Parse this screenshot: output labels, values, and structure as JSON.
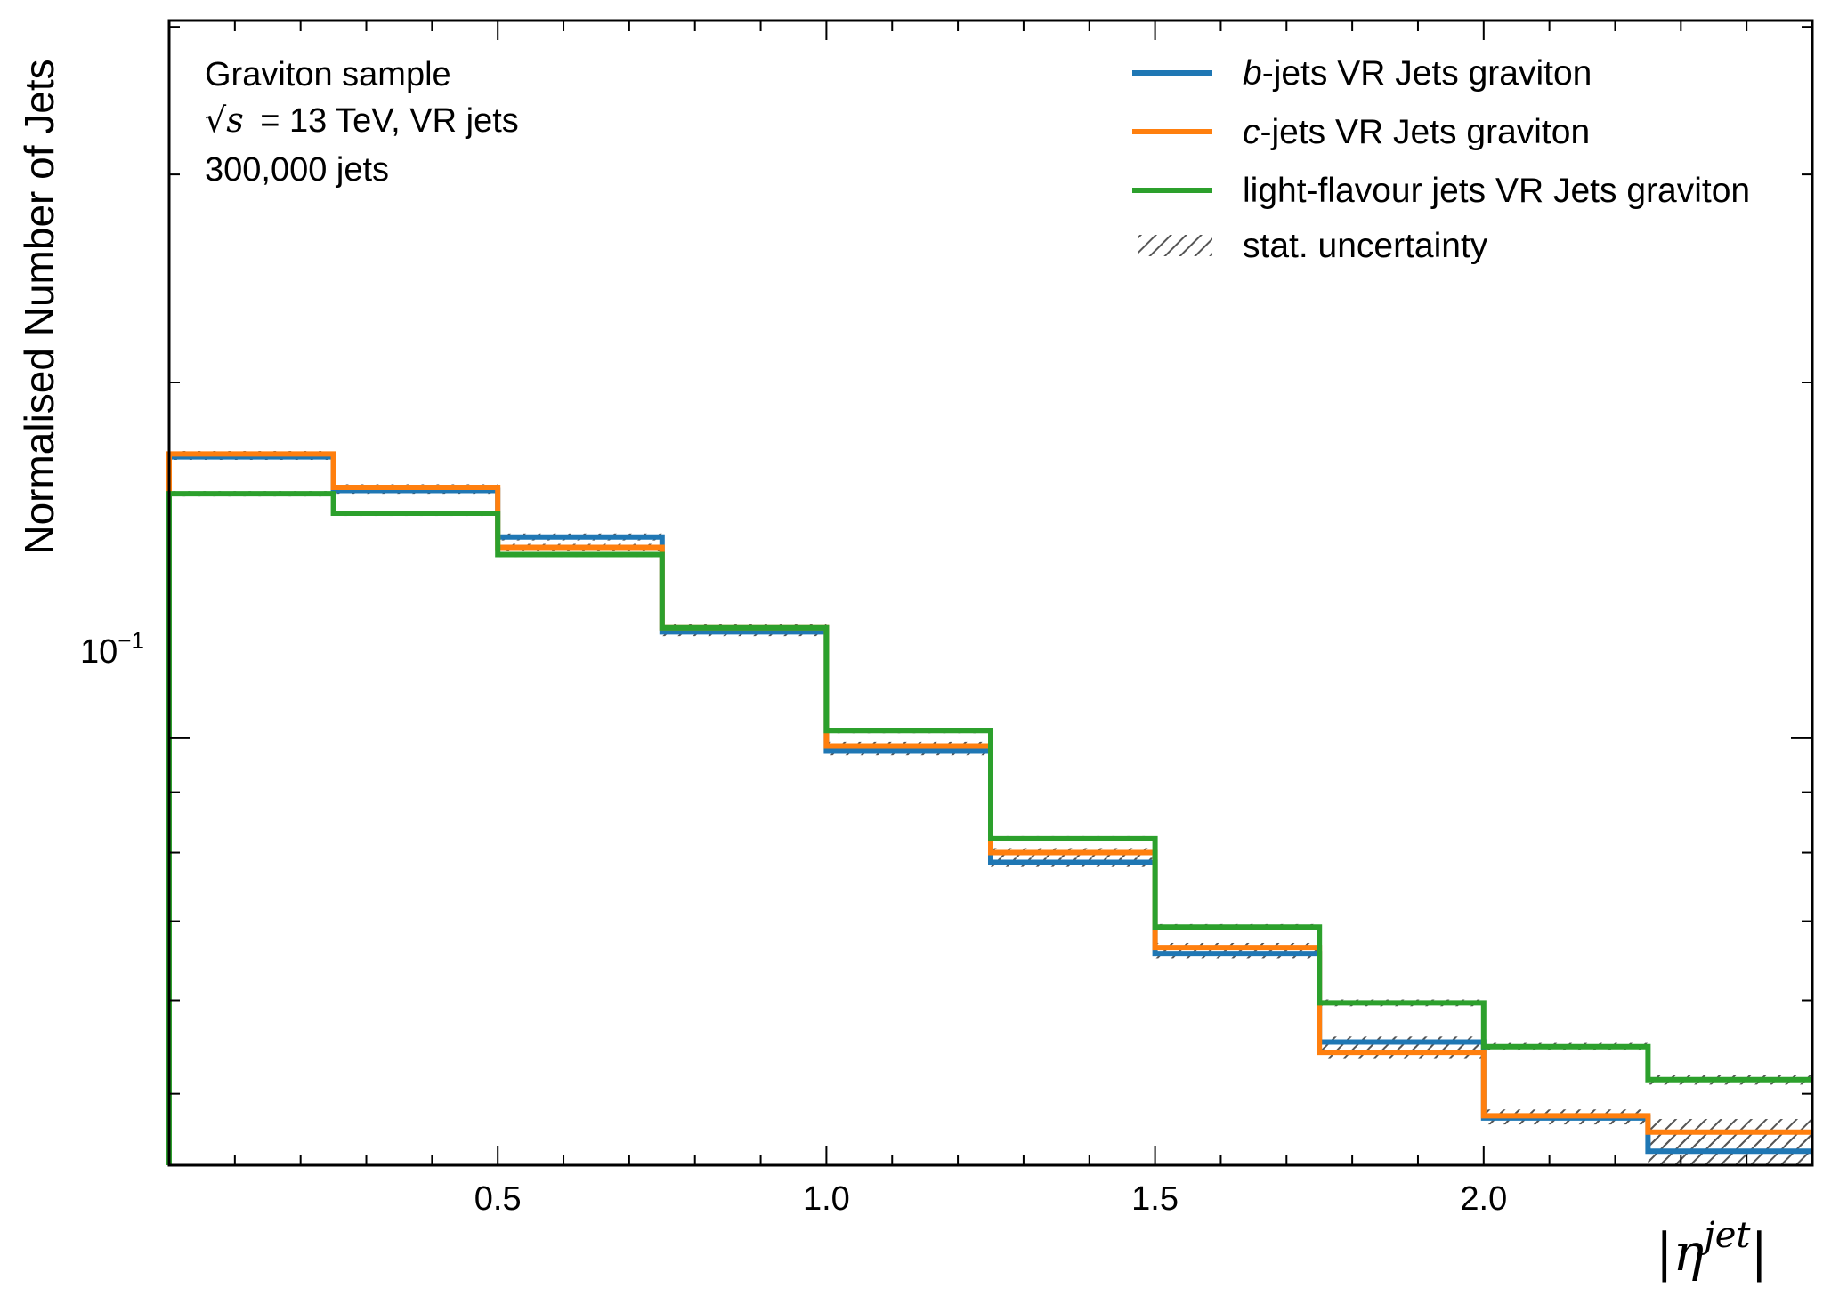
{
  "chart_data": {
    "type": "line",
    "drawstyle": "step",
    "xlabel": "|η^jet|",
    "ylabel": "Normalised Number of Jets",
    "yscale": "log",
    "xlim": [
      0,
      2.5
    ],
    "ylim": [
      0.0435,
      0.405
    ],
    "x_ticks": [
      "0.5",
      "1.0",
      "1.5",
      "2.0"
    ],
    "y_tick_major": "10^{-1}",
    "grid": false,
    "legend_placement": "top-right",
    "annotations": {
      "line1": "Graviton sample",
      "line2_sqrt": "√s",
      "line2_rest": "= 13 TeV, VR jets",
      "line3": "300,000 jets"
    },
    "bin_edges": [
      0,
      0.25,
      0.5,
      0.75,
      1.0,
      1.25,
      1.5,
      1.75,
      2.0,
      2.25,
      2.5
    ],
    "series": [
      {
        "name_italic": "b",
        "name_rest": "-jets VR Jets graviton",
        "color": "#1f77b4",
        "values": [
          0.173,
          0.162,
          0.148,
          0.123,
          0.0975,
          0.0785,
          0.0657,
          0.0553,
          0.0477,
          0.0447
        ],
        "uncertainty": [
          0.001,
          0.001,
          0.001,
          0.001,
          0.0008,
          0.0007,
          0.0006,
          0.0006,
          0.0006,
          0.0012
        ]
      },
      {
        "name_italic": "c",
        "name_rest": "-jets VR Jets graviton",
        "color": "#ff7f0e",
        "values": [
          0.174,
          0.163,
          0.145,
          0.124,
          0.0985,
          0.08,
          0.0665,
          0.0542,
          0.0479,
          0.0464
        ],
        "uncertainty": [
          0.001,
          0.001,
          0.001,
          0.001,
          0.0008,
          0.0007,
          0.0006,
          0.0006,
          0.0006,
          0.0012
        ]
      },
      {
        "name_italic": "",
        "name_rest": "light-flavour jets VR Jets graviton",
        "color": "#2ca02c",
        "values": [
          0.161,
          0.155,
          0.143,
          0.124,
          0.1015,
          0.0822,
          0.0692,
          0.0597,
          0.0548,
          0.0514
        ],
        "uncertainty": [
          0.0005,
          0.0005,
          0.0005,
          0.0005,
          0.0004,
          0.0004,
          0.0004,
          0.0004,
          0.0004,
          0.0005
        ]
      }
    ],
    "uncertainty_label": "stat. uncertainty"
  }
}
